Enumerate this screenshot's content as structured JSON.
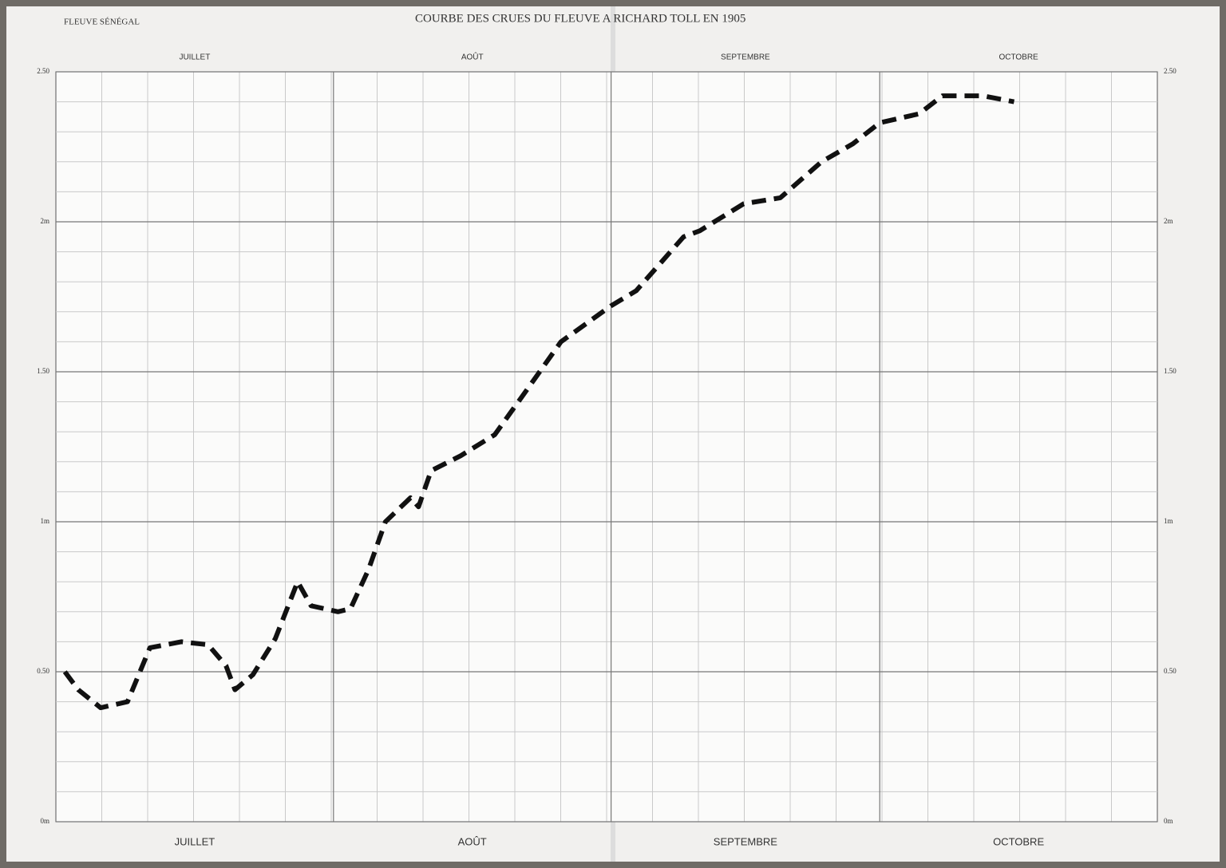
{
  "chart_data": {
    "type": "line",
    "title": "COURBE DES CRUES DU FLEUVE A RICHARD TOLL EN 1905",
    "subtitle": "FLEUVE SÉNÉGAL",
    "x": [
      1,
      2.5,
      5,
      8,
      10.5,
      14,
      17,
      19,
      20,
      22,
      24.5,
      27,
      28.5,
      31.5,
      32.9,
      34.9,
      36.8,
      39.6,
      40.5,
      41.9,
      45.2,
      49,
      52.6,
      56.4,
      62,
      64.8,
      70.1,
      71.9,
      76.8,
      80.9,
      85.5,
      89,
      92,
      96.4,
      99,
      103.5,
      107
    ],
    "values": [
      0.5,
      0.44,
      0.38,
      0.4,
      0.58,
      0.6,
      0.59,
      0.52,
      0.44,
      0.49,
      0.61,
      0.8,
      0.72,
      0.7,
      0.71,
      0.84,
      1.0,
      1.08,
      1.05,
      1.17,
      1.22,
      1.29,
      1.44,
      1.6,
      1.72,
      1.77,
      1.95,
      1.97,
      2.06,
      2.08,
      2.2,
      2.26,
      2.33,
      2.36,
      2.42,
      2.42,
      2.4
    ],
    "color": "#111111",
    "xlim": [
      0,
      123
    ],
    "xticks": [
      {
        "value": 15.5,
        "label": "JUILLET"
      },
      {
        "value": 46.5,
        "label": "AOÛT"
      },
      {
        "value": 77,
        "label": "SEPTEMBRE"
      },
      {
        "value": 107.5,
        "label": "OCTOBRE"
      }
    ],
    "ylim": [
      0,
      2.5
    ],
    "yticks": [
      {
        "value": 0,
        "label": "0m"
      },
      {
        "value": 0.5,
        "label": "0.50"
      },
      {
        "value": 1,
        "label": "1m"
      },
      {
        "value": 1.5,
        "label": "1.50"
      },
      {
        "value": 2,
        "label": "2m"
      },
      {
        "value": 2.5,
        "label": "2.50"
      }
    ],
    "grid": true
  }
}
